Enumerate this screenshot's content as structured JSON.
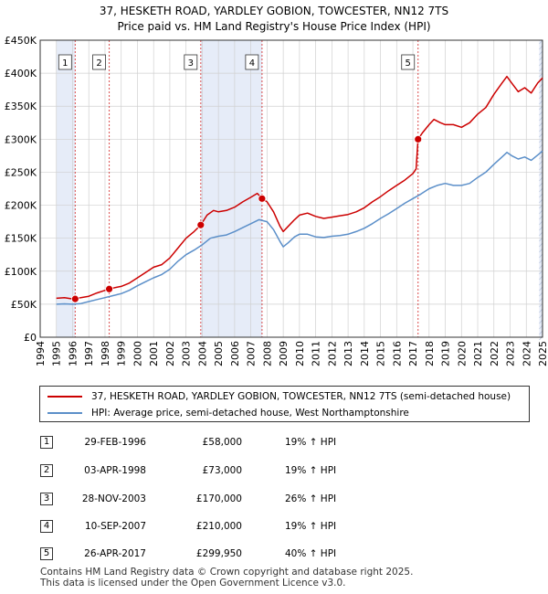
{
  "chart_data": {
    "type": "line",
    "title": "37, HESKETH ROAD, YARDLEY GOBION, TOWCESTER, NN12 7TS",
    "subtitle": "Price paid vs. HM Land Registry's House Price Index (HPI)",
    "xlim": [
      1994.0,
      2025.0
    ],
    "ylim": [
      0,
      450000
    ],
    "x_ticks": [
      "1994",
      "1995",
      "1996",
      "1997",
      "1998",
      "1999",
      "2000",
      "2001",
      "2002",
      "2003",
      "2004",
      "2005",
      "2006",
      "2007",
      "2008",
      "2009",
      "2010",
      "2011",
      "2012",
      "2013",
      "2014",
      "2015",
      "2016",
      "2017",
      "2018",
      "2019",
      "2020",
      "2021",
      "2022",
      "2023",
      "2024",
      "2025"
    ],
    "y_ticks": [
      {
        "value": 0,
        "label": "£0"
      },
      {
        "value": 50000,
        "label": "£50K"
      },
      {
        "value": 100000,
        "label": "£100K"
      },
      {
        "value": 150000,
        "label": "£150K"
      },
      {
        "value": 200000,
        "label": "£200K"
      },
      {
        "value": 250000,
        "label": "£250K"
      },
      {
        "value": 300000,
        "label": "£300K"
      },
      {
        "value": 350000,
        "label": "£350K"
      },
      {
        "value": 400000,
        "label": "£400K"
      },
      {
        "value": 450000,
        "label": "£450K"
      }
    ],
    "grid": true,
    "shaded_spans": [
      [
        1995.0,
        1996.16
      ],
      [
        2003.91,
        2007.69
      ],
      [
        2024.8,
        2025.0
      ]
    ],
    "series": [
      {
        "name": "37, HESKETH ROAD, YARDLEY GOBION, TOWCESTER, NN12 7TS (semi-detached house)",
        "color": "#cc0000",
        "points": [
          [
            1995.0,
            59000
          ],
          [
            1995.5,
            60000
          ],
          [
            1996.0,
            58000
          ],
          [
            1996.16,
            58000
          ],
          [
            1996.5,
            60000
          ],
          [
            1997.0,
            62000
          ],
          [
            1997.5,
            67000
          ],
          [
            1998.0,
            71000
          ],
          [
            1998.26,
            73000
          ],
          [
            1998.6,
            75000
          ],
          [
            1999.0,
            77000
          ],
          [
            1999.5,
            82000
          ],
          [
            2000.0,
            90000
          ],
          [
            2000.5,
            98000
          ],
          [
            2001.0,
            106000
          ],
          [
            2001.5,
            110000
          ],
          [
            2002.0,
            120000
          ],
          [
            2002.5,
            135000
          ],
          [
            2003.0,
            150000
          ],
          [
            2003.5,
            160000
          ],
          [
            2003.91,
            170000
          ],
          [
            2004.3,
            185000
          ],
          [
            2004.7,
            192000
          ],
          [
            2005.0,
            190000
          ],
          [
            2005.5,
            192000
          ],
          [
            2006.0,
            197000
          ],
          [
            2006.5,
            205000
          ],
          [
            2007.0,
            212000
          ],
          [
            2007.4,
            218000
          ],
          [
            2007.69,
            210000
          ],
          [
            2008.0,
            205000
          ],
          [
            2008.4,
            190000
          ],
          [
            2008.8,
            168000
          ],
          [
            2009.0,
            160000
          ],
          [
            2009.3,
            168000
          ],
          [
            2009.7,
            178000
          ],
          [
            2010.0,
            185000
          ],
          [
            2010.5,
            188000
          ],
          [
            2011.0,
            183000
          ],
          [
            2011.5,
            180000
          ],
          [
            2012.0,
            182000
          ],
          [
            2012.5,
            184000
          ],
          [
            2013.0,
            186000
          ],
          [
            2013.5,
            190000
          ],
          [
            2014.0,
            196000
          ],
          [
            2014.5,
            205000
          ],
          [
            2015.0,
            213000
          ],
          [
            2015.5,
            222000
          ],
          [
            2016.0,
            230000
          ],
          [
            2016.5,
            238000
          ],
          [
            2017.0,
            248000
          ],
          [
            2017.2,
            255000
          ],
          [
            2017.32,
            299950
          ],
          [
            2017.6,
            310000
          ],
          [
            2018.0,
            322000
          ],
          [
            2018.3,
            330000
          ],
          [
            2018.7,
            325000
          ],
          [
            2019.0,
            322000
          ],
          [
            2019.5,
            322000
          ],
          [
            2020.0,
            318000
          ],
          [
            2020.5,
            325000
          ],
          [
            2021.0,
            338000
          ],
          [
            2021.5,
            348000
          ],
          [
            2022.0,
            368000
          ],
          [
            2022.5,
            385000
          ],
          [
            2022.8,
            395000
          ],
          [
            2023.1,
            385000
          ],
          [
            2023.5,
            372000
          ],
          [
            2023.9,
            378000
          ],
          [
            2024.3,
            370000
          ],
          [
            2024.7,
            385000
          ],
          [
            2025.0,
            393000
          ]
        ]
      },
      {
        "name": "HPI: Average price, semi-detached house, West Northamptonshire",
        "color": "#5b8fc9",
        "points": [
          [
            1995.0,
            50000
          ],
          [
            1995.5,
            50500
          ],
          [
            1996.0,
            50000
          ],
          [
            1996.5,
            51000
          ],
          [
            1997.0,
            54000
          ],
          [
            1997.5,
            57000
          ],
          [
            1998.0,
            60000
          ],
          [
            1998.5,
            63000
          ],
          [
            1999.0,
            66000
          ],
          [
            1999.5,
            71000
          ],
          [
            2000.0,
            78000
          ],
          [
            2000.5,
            84000
          ],
          [
            2001.0,
            90000
          ],
          [
            2001.5,
            95000
          ],
          [
            2002.0,
            103000
          ],
          [
            2002.5,
            115000
          ],
          [
            2003.0,
            125000
          ],
          [
            2003.5,
            132000
          ],
          [
            2004.0,
            140000
          ],
          [
            2004.5,
            150000
          ],
          [
            2005.0,
            153000
          ],
          [
            2005.5,
            155000
          ],
          [
            2006.0,
            160000
          ],
          [
            2006.5,
            166000
          ],
          [
            2007.0,
            172000
          ],
          [
            2007.5,
            178000
          ],
          [
            2008.0,
            175000
          ],
          [
            2008.4,
            163000
          ],
          [
            2008.8,
            145000
          ],
          [
            2009.0,
            137000
          ],
          [
            2009.3,
            143000
          ],
          [
            2009.7,
            152000
          ],
          [
            2010.0,
            156000
          ],
          [
            2010.5,
            156000
          ],
          [
            2011.0,
            152000
          ],
          [
            2011.5,
            151000
          ],
          [
            2012.0,
            153000
          ],
          [
            2012.5,
            154000
          ],
          [
            2013.0,
            156000
          ],
          [
            2013.5,
            160000
          ],
          [
            2014.0,
            165000
          ],
          [
            2014.5,
            172000
          ],
          [
            2015.0,
            180000
          ],
          [
            2015.5,
            187000
          ],
          [
            2016.0,
            195000
          ],
          [
            2016.5,
            203000
          ],
          [
            2017.0,
            210000
          ],
          [
            2017.5,
            217000
          ],
          [
            2018.0,
            225000
          ],
          [
            2018.5,
            230000
          ],
          [
            2019.0,
            233000
          ],
          [
            2019.5,
            230000
          ],
          [
            2020.0,
            230000
          ],
          [
            2020.5,
            233000
          ],
          [
            2021.0,
            242000
          ],
          [
            2021.5,
            250000
          ],
          [
            2022.0,
            262000
          ],
          [
            2022.5,
            273000
          ],
          [
            2022.8,
            280000
          ],
          [
            2023.1,
            275000
          ],
          [
            2023.5,
            270000
          ],
          [
            2023.9,
            273000
          ],
          [
            2024.3,
            268000
          ],
          [
            2024.7,
            276000
          ],
          [
            2025.0,
            282000
          ]
        ]
      }
    ],
    "sales": [
      {
        "label": "1",
        "x": 1996.16,
        "y": 58000
      },
      {
        "label": "2",
        "x": 1998.26,
        "y": 73000
      },
      {
        "label": "3",
        "x": 2003.91,
        "y": 170000
      },
      {
        "label": "4",
        "x": 2007.69,
        "y": 210000
      },
      {
        "label": "5",
        "x": 2017.32,
        "y": 299950
      }
    ],
    "colors": {
      "shade": "#e6ecf8",
      "grid": "#d0d0d0",
      "vline": "#cc0000"
    }
  },
  "legend": {
    "property_label": "37, HESKETH ROAD, YARDLEY GOBION, TOWCESTER, NN12 7TS (semi-detached house)",
    "hpi_label": "HPI: Average price, semi-detached house, West Northamptonshire",
    "property_color": "#cc0000",
    "hpi_color": "#5b8fc9"
  },
  "sales_table": [
    {
      "num": "1",
      "date": "29-FEB-1996",
      "price": "£58,000",
      "hpi": "19% ↑ HPI"
    },
    {
      "num": "2",
      "date": "03-APR-1998",
      "price": "£73,000",
      "hpi": "19% ↑ HPI"
    },
    {
      "num": "3",
      "date": "28-NOV-2003",
      "price": "£170,000",
      "hpi": "26% ↑ HPI"
    },
    {
      "num": "4",
      "date": "10-SEP-2007",
      "price": "£210,000",
      "hpi": "19% ↑ HPI"
    },
    {
      "num": "5",
      "date": "26-APR-2017",
      "price": "£299,950",
      "hpi": "40% ↑ HPI"
    }
  ],
  "footer": {
    "line1": "Contains HM Land Registry data © Crown copyright and database right 2025.",
    "line2": "This data is licensed under the Open Government Licence v3.0."
  }
}
